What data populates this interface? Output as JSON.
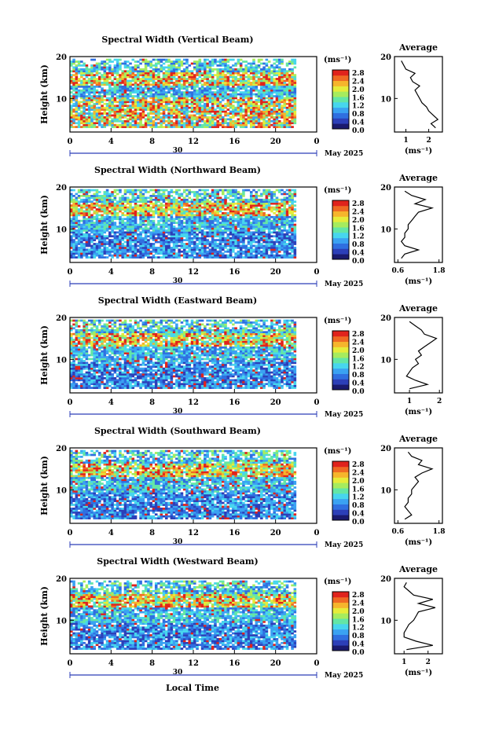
{
  "figure": {
    "x_axis_label": "Local Time",
    "date_label": "May 2025",
    "day_label": "30"
  },
  "colors": {
    "scale": [
      "#1a1a6e",
      "#2c3fb8",
      "#2f6fe0",
      "#3aa2f2",
      "#47d6ee",
      "#63e6a6",
      "#a6ec5e",
      "#e6ec3a",
      "#f6b52c",
      "#ef6a23",
      "#e0231c"
    ]
  },
  "chart_data": [
    {
      "type": "heatmap",
      "title": "Spectral Width (Vertical Beam)",
      "ylabel": "Height (km)",
      "x_ticks": [
        "0",
        "4",
        "8",
        "12",
        "16",
        "20",
        "0"
      ],
      "y_ticks": [
        "20",
        "10"
      ],
      "xlim": [
        0,
        24
      ],
      "ylim": [
        2,
        20
      ],
      "data_end_hour": 22,
      "colorbar": {
        "unit": "(ms⁻¹)",
        "ticks": [
          "2.8",
          "2.4",
          "2.0",
          "1.6",
          "1.2",
          "0.8",
          "0.4",
          "0.0"
        ]
      },
      "profile": {
        "title": "Average",
        "xlabel": "(ms⁻¹)",
        "x_ticks": [
          "1",
          "2"
        ],
        "y_ticks": [
          "20",
          "10"
        ],
        "xlim": [
          0.5,
          2.6
        ],
        "heights": [
          3,
          4,
          5,
          6,
          7,
          8,
          9,
          10,
          11,
          12,
          13,
          14,
          15,
          16,
          17,
          18,
          19
        ],
        "values": [
          2.3,
          2.1,
          2.4,
          2.2,
          2.0,
          1.9,
          1.7,
          1.6,
          1.5,
          1.4,
          1.6,
          1.3,
          1.2,
          1.4,
          1.0,
          0.9,
          0.8
        ]
      }
    },
    {
      "type": "heatmap",
      "title": "Spectral Width (Northward Beam)",
      "ylabel": "Height (km)",
      "x_ticks": [
        "0",
        "4",
        "8",
        "12",
        "16",
        "20",
        "0"
      ],
      "y_ticks": [
        "20",
        "10"
      ],
      "xlim": [
        0,
        24
      ],
      "ylim": [
        2,
        20
      ],
      "data_end_hour": 22,
      "colorbar": {
        "unit": "(ms⁻¹)",
        "ticks": [
          "2.8",
          "2.4",
          "2.0",
          "1.6",
          "1.2",
          "0.8",
          "0.4",
          "0.0"
        ]
      },
      "profile": {
        "title": "Average",
        "xlabel": "(ms⁻¹)",
        "x_ticks": [
          "0.6",
          "1.8"
        ],
        "y_ticks": [
          "20",
          "10"
        ],
        "xlim": [
          0.5,
          1.9
        ],
        "heights": [
          3,
          4,
          5,
          6,
          7,
          8,
          9,
          10,
          11,
          12,
          13,
          14,
          15,
          16,
          17,
          18,
          19
        ],
        "values": [
          0.7,
          0.8,
          1.2,
          0.8,
          0.7,
          0.8,
          0.8,
          0.9,
          0.9,
          1.0,
          1.1,
          1.2,
          1.6,
          1.1,
          1.4,
          1.0,
          0.8
        ]
      }
    },
    {
      "type": "heatmap",
      "title": "Spectral Width (Eastward Beam)",
      "ylabel": "Height (km)",
      "x_ticks": [
        "0",
        "4",
        "8",
        "12",
        "16",
        "20",
        "0"
      ],
      "y_ticks": [
        "20",
        "10"
      ],
      "xlim": [
        0,
        24
      ],
      "ylim": [
        2,
        20
      ],
      "data_end_hour": 22,
      "colorbar": {
        "unit": "(ms⁻¹)",
        "ticks": [
          "2.8",
          "2.4",
          "2.0",
          "1.6",
          "1.2",
          "0.8",
          "0.4",
          "0.0"
        ]
      },
      "profile": {
        "title": "Average",
        "xlabel": "(ms⁻¹)",
        "x_ticks": [
          "1",
          "2"
        ],
        "y_ticks": [
          "20",
          "10"
        ],
        "xlim": [
          0.5,
          2.1
        ],
        "heights": [
          3,
          4,
          5,
          6,
          7,
          8,
          9,
          10,
          11,
          12,
          13,
          14,
          15,
          16,
          17,
          18,
          19
        ],
        "values": [
          1.0,
          1.6,
          1.2,
          0.9,
          1.0,
          1.1,
          1.3,
          1.2,
          1.4,
          1.3,
          1.5,
          1.7,
          1.9,
          1.5,
          1.4,
          1.2,
          1.0
        ]
      }
    },
    {
      "type": "heatmap",
      "title": "Spectral Width (Southward Beam)",
      "ylabel": "Height (km)",
      "x_ticks": [
        "0",
        "4",
        "8",
        "12",
        "16",
        "20",
        "0"
      ],
      "y_ticks": [
        "20",
        "10"
      ],
      "xlim": [
        0,
        24
      ],
      "ylim": [
        2,
        20
      ],
      "data_end_hour": 22,
      "colorbar": {
        "unit": "(ms⁻¹)",
        "ticks": [
          "2.8",
          "2.4",
          "2.0",
          "1.6",
          "1.2",
          "0.8",
          "0.4",
          "0.0"
        ]
      },
      "profile": {
        "title": "Average",
        "xlabel": "(ms⁻¹)",
        "x_ticks": [
          "0.6",
          "1.8"
        ],
        "y_ticks": [
          "20",
          "10"
        ],
        "xlim": [
          0.5,
          1.9
        ],
        "heights": [
          3,
          4,
          5,
          6,
          7,
          8,
          9,
          10,
          11,
          12,
          13,
          14,
          15,
          16,
          17,
          18,
          19
        ],
        "values": [
          0.8,
          1.0,
          0.9,
          0.8,
          0.9,
          0.9,
          1.0,
          1.0,
          1.1,
          1.2,
          1.1,
          1.3,
          1.6,
          1.2,
          1.3,
          1.0,
          0.9
        ]
      }
    },
    {
      "type": "heatmap",
      "title": "Spectral Width (Westward Beam)",
      "ylabel": "Height (km)",
      "x_ticks": [
        "0",
        "4",
        "8",
        "12",
        "16",
        "20",
        "0"
      ],
      "y_ticks": [
        "20",
        "10"
      ],
      "xlim": [
        0,
        24
      ],
      "ylim": [
        2,
        20
      ],
      "data_end_hour": 22,
      "colorbar": {
        "unit": "(ms⁻¹)",
        "ticks": [
          "2.8",
          "2.4",
          "2.0",
          "1.6",
          "1.2",
          "0.8",
          "0.4",
          "0.0"
        ]
      },
      "profile": {
        "title": "Average",
        "xlabel": "(ms⁻¹)",
        "x_ticks": [
          "1",
          "2"
        ],
        "y_ticks": [
          "20",
          "10"
        ],
        "xlim": [
          0.6,
          2.6
        ],
        "heights": [
          3,
          4,
          5,
          6,
          7,
          8,
          9,
          10,
          11,
          12,
          13,
          14,
          15,
          16,
          17,
          18,
          19
        ],
        "values": [
          1.1,
          2.2,
          1.5,
          1.0,
          1.0,
          1.1,
          1.2,
          1.4,
          1.5,
          1.6,
          2.3,
          1.6,
          2.2,
          1.4,
          1.2,
          1.0,
          1.1
        ]
      }
    }
  ]
}
